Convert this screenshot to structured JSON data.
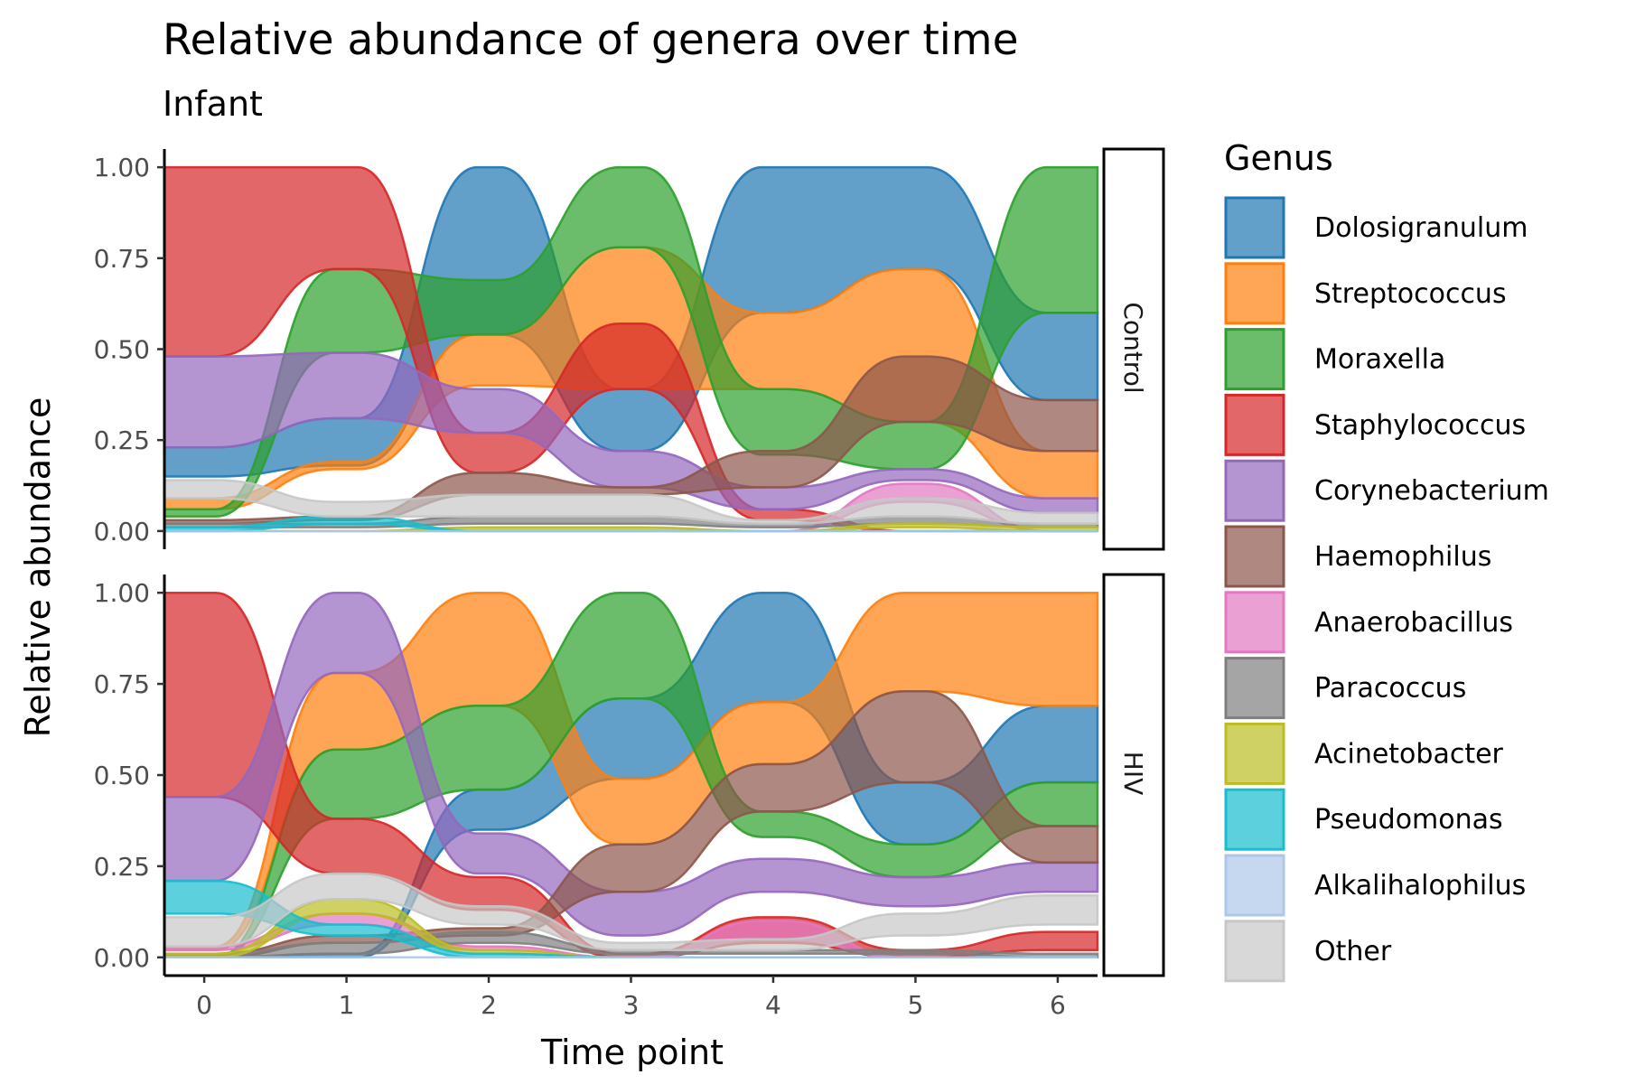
{
  "chart_data": {
    "type": "area",
    "subtype": "alluvial",
    "title": "Relative abundance of genera over time",
    "subtitle": "Infant",
    "xlabel": "Time point",
    "ylabel": "Relative abundance",
    "x": [
      0,
      1,
      2,
      3,
      4,
      5,
      6
    ],
    "xlim": [
      -0.28,
      6.28
    ],
    "ylim": [
      -0.05,
      1.05
    ],
    "y_ticks": [
      0.0,
      0.25,
      0.5,
      0.75,
      1.0
    ],
    "y_tick_labels": [
      "0.00",
      "0.25",
      "0.50",
      "0.75",
      "1.00"
    ],
    "x_tick_labels": [
      "0",
      "1",
      "2",
      "3",
      "4",
      "5",
      "6"
    ],
    "grid": false,
    "legend": {
      "title": "Genus",
      "position": "right",
      "entries": [
        "Dolosigranulum",
        "Streptococcus",
        "Moraxella",
        "Staphylococcus",
        "Corynebacterium",
        "Haemophilus",
        "Anaerobacillus",
        "Paracoccus",
        "Acinetobacter",
        "Pseudomonas",
        "Alkalihalophilus",
        "Other"
      ]
    },
    "colors": {
      "Dolosigranulum": "#1f77b4",
      "Streptococcus": "#ff7f0e",
      "Moraxella": "#2ca02c",
      "Staphylococcus": "#d62728",
      "Corynebacterium": "#9467bd",
      "Haemophilus": "#8c564b",
      "Anaerobacillus": "#e377c2",
      "Paracoccus": "#7f7f7f",
      "Acinetobacter": "#bcbd22",
      "Pseudomonas": "#17becf",
      "Alkalihalophilus": "#aec7e8",
      "Other": "#c7c7c7"
    },
    "panels": [
      {
        "strip": "Control",
        "series": [
          {
            "name": "Dolosigranulum",
            "bands": [
              [
                0.15,
                0.23
              ],
              [
                0.18,
                0.31
              ],
              [
                0.54,
                1.0
              ],
              [
                0.22,
                0.39
              ],
              [
                0.6,
                1.0
              ],
              [
                0.72,
                1.0
              ],
              [
                0.36,
                0.6
              ]
            ]
          },
          {
            "name": "Streptococcus",
            "bands": [
              [
                0.06,
                0.09
              ],
              [
                0.17,
                0.19
              ],
              [
                0.4,
                0.54
              ],
              [
                0.39,
                0.78
              ],
              [
                0.39,
                0.6
              ],
              [
                0.3,
                0.72
              ],
              [
                0.09,
                0.22
              ]
            ]
          },
          {
            "name": "Moraxella",
            "bands": [
              [
                0.04,
                0.06
              ],
              [
                0.49,
                0.72
              ],
              [
                0.54,
                0.69
              ],
              [
                0.78,
                1.0
              ],
              [
                0.21,
                0.39
              ],
              [
                0.17,
                0.3
              ],
              [
                0.6,
                1.0
              ]
            ]
          },
          {
            "name": "Staphylococcus",
            "bands": [
              [
                0.48,
                1.0
              ],
              [
                0.72,
                1.0
              ],
              [
                0.16,
                0.27
              ],
              [
                0.39,
                0.57
              ],
              [
                0.03,
                0.06
              ],
              [
                0.0,
                0.0
              ],
              [
                0.0,
                0.0
              ]
            ]
          },
          {
            "name": "Corynebacterium",
            "bands": [
              [
                0.23,
                0.48
              ],
              [
                0.31,
                0.49
              ],
              [
                0.27,
                0.39
              ],
              [
                0.12,
                0.22
              ],
              [
                0.06,
                0.12
              ],
              [
                0.14,
                0.17
              ],
              [
                0.05,
                0.09
              ]
            ]
          },
          {
            "name": "Haemophilus",
            "bands": [
              [
                0.02,
                0.03
              ],
              [
                0.03,
                0.04
              ],
              [
                0.1,
                0.16
              ],
              [
                0.1,
                0.12
              ],
              [
                0.12,
                0.22
              ],
              [
                0.3,
                0.48
              ],
              [
                0.22,
                0.36
              ]
            ]
          },
          {
            "name": "Anaerobacillus",
            "bands": [
              [
                0.0,
                0.0
              ],
              [
                0.0,
                0.0
              ],
              [
                0.0,
                0.0
              ],
              [
                0.0,
                0.0
              ],
              [
                0.0,
                0.0
              ],
              [
                0.08,
                0.13
              ],
              [
                0.0,
                0.0
              ]
            ]
          },
          {
            "name": "Paracoccus",
            "bands": [
              [
                0.01,
                0.02
              ],
              [
                0.01,
                0.02
              ],
              [
                0.02,
                0.04
              ],
              [
                0.02,
                0.04
              ],
              [
                0.01,
                0.02
              ],
              [
                0.02,
                0.04
              ],
              [
                0.01,
                0.02
              ]
            ]
          },
          {
            "name": "Acinetobacter",
            "bands": [
              [
                0.0,
                0.0
              ],
              [
                0.0,
                0.0
              ],
              [
                0.0,
                0.01
              ],
              [
                0.0,
                0.01
              ],
              [
                0.0,
                0.0
              ],
              [
                0.01,
                0.02
              ],
              [
                0.0,
                0.01
              ]
            ]
          },
          {
            "name": "Pseudomonas",
            "bands": [
              [
                0.0,
                0.01
              ],
              [
                0.02,
                0.04
              ],
              [
                0.0,
                0.0
              ],
              [
                0.0,
                0.0
              ],
              [
                0.0,
                0.0
              ],
              [
                0.0,
                0.0
              ],
              [
                0.0,
                0.0
              ]
            ]
          },
          {
            "name": "Alkalihalophilus",
            "bands": [
              [
                0.0,
                0.0
              ],
              [
                0.0,
                0.0
              ],
              [
                0.0,
                0.0
              ],
              [
                0.0,
                0.0
              ],
              [
                0.0,
                0.0
              ],
              [
                0.0,
                0.0
              ],
              [
                0.0,
                0.0
              ]
            ]
          },
          {
            "name": "Other",
            "bands": [
              [
                0.09,
                0.14
              ],
              [
                0.04,
                0.08
              ],
              [
                0.04,
                0.1
              ],
              [
                0.04,
                0.1
              ],
              [
                0.02,
                0.03
              ],
              [
                0.04,
                0.09
              ],
              [
                0.02,
                0.05
              ]
            ]
          }
        ]
      },
      {
        "strip": "HIV",
        "series": [
          {
            "name": "Dolosigranulum",
            "bands": [
              [
                0.0,
                0.0
              ],
              [
                0.0,
                0.01
              ],
              [
                0.35,
                0.46
              ],
              [
                0.49,
                0.71
              ],
              [
                0.7,
                1.0
              ],
              [
                0.31,
                0.48
              ],
              [
                0.48,
                0.69
              ]
            ]
          },
          {
            "name": "Streptococcus",
            "bands": [
              [
                0.02,
                0.03
              ],
              [
                0.57,
                0.78
              ],
              [
                0.69,
                1.0
              ],
              [
                0.31,
                0.49
              ],
              [
                0.53,
                0.7
              ],
              [
                0.73,
                1.0
              ],
              [
                0.69,
                1.0
              ]
            ]
          },
          {
            "name": "Moraxella",
            "bands": [
              [
                0.0,
                0.0
              ],
              [
                0.38,
                0.57
              ],
              [
                0.46,
                0.69
              ],
              [
                0.71,
                1.0
              ],
              [
                0.33,
                0.4
              ],
              [
                0.22,
                0.31
              ],
              [
                0.36,
                0.48
              ]
            ]
          },
          {
            "name": "Staphylococcus",
            "bands": [
              [
                0.44,
                1.0
              ],
              [
                0.23,
                0.38
              ],
              [
                0.13,
                0.22
              ],
              [
                0.0,
                0.01
              ],
              [
                0.04,
                0.11
              ],
              [
                0.0,
                0.02
              ],
              [
                0.02,
                0.07
              ]
            ]
          },
          {
            "name": "Corynebacterium",
            "bands": [
              [
                0.21,
                0.44
              ],
              [
                0.78,
                1.0
              ],
              [
                0.23,
                0.34
              ],
              [
                0.06,
                0.18
              ],
              [
                0.18,
                0.27
              ],
              [
                0.14,
                0.22
              ],
              [
                0.18,
                0.26
              ]
            ]
          },
          {
            "name": "Haemophilus",
            "bands": [
              [
                0.0,
                0.01
              ],
              [
                0.04,
                0.06
              ],
              [
                0.06,
                0.08
              ],
              [
                0.18,
                0.31
              ],
              [
                0.4,
                0.53
              ],
              [
                0.48,
                0.73
              ],
              [
                0.26,
                0.36
              ]
            ]
          },
          {
            "name": "Anaerobacillus",
            "bands": [
              [
                0.02,
                0.03
              ],
              [
                0.09,
                0.12
              ],
              [
                0.02,
                0.03
              ],
              [
                0.0,
                0.0
              ],
              [
                0.05,
                0.1
              ],
              [
                0.0,
                0.0
              ],
              [
                0.0,
                0.0
              ]
            ]
          },
          {
            "name": "Paracoccus",
            "bands": [
              [
                0.0,
                0.01
              ],
              [
                0.01,
                0.04
              ],
              [
                0.04,
                0.07
              ],
              [
                0.01,
                0.02
              ],
              [
                0.01,
                0.02
              ],
              [
                0.01,
                0.02
              ],
              [
                0.0,
                0.01
              ]
            ]
          },
          {
            "name": "Acinetobacter",
            "bands": [
              [
                0.0,
                0.01
              ],
              [
                0.12,
                0.16
              ],
              [
                0.01,
                0.02
              ],
              [
                0.0,
                0.0
              ],
              [
                0.0,
                0.0
              ],
              [
                0.0,
                0.0
              ],
              [
                0.0,
                0.0
              ]
            ]
          },
          {
            "name": "Pseudomonas",
            "bands": [
              [
                0.12,
                0.21
              ],
              [
                0.06,
                0.09
              ],
              [
                0.0,
                0.01
              ],
              [
                0.0,
                0.0
              ],
              [
                0.0,
                0.0
              ],
              [
                0.0,
                0.0
              ],
              [
                0.0,
                0.0
              ]
            ]
          },
          {
            "name": "Alkalihalophilus",
            "bands": [
              [
                0.0,
                0.0
              ],
              [
                0.0,
                0.0
              ],
              [
                0.0,
                0.0
              ],
              [
                0.0,
                0.0
              ],
              [
                0.0,
                0.0
              ],
              [
                0.0,
                0.0
              ],
              [
                0.0,
                0.0
              ]
            ]
          },
          {
            "name": "Other",
            "bands": [
              [
                0.03,
                0.11
              ],
              [
                0.16,
                0.23
              ],
              [
                0.09,
                0.14
              ],
              [
                0.02,
                0.04
              ],
              [
                0.02,
                0.05
              ],
              [
                0.06,
                0.12
              ],
              [
                0.09,
                0.17
              ]
            ]
          }
        ]
      }
    ]
  }
}
